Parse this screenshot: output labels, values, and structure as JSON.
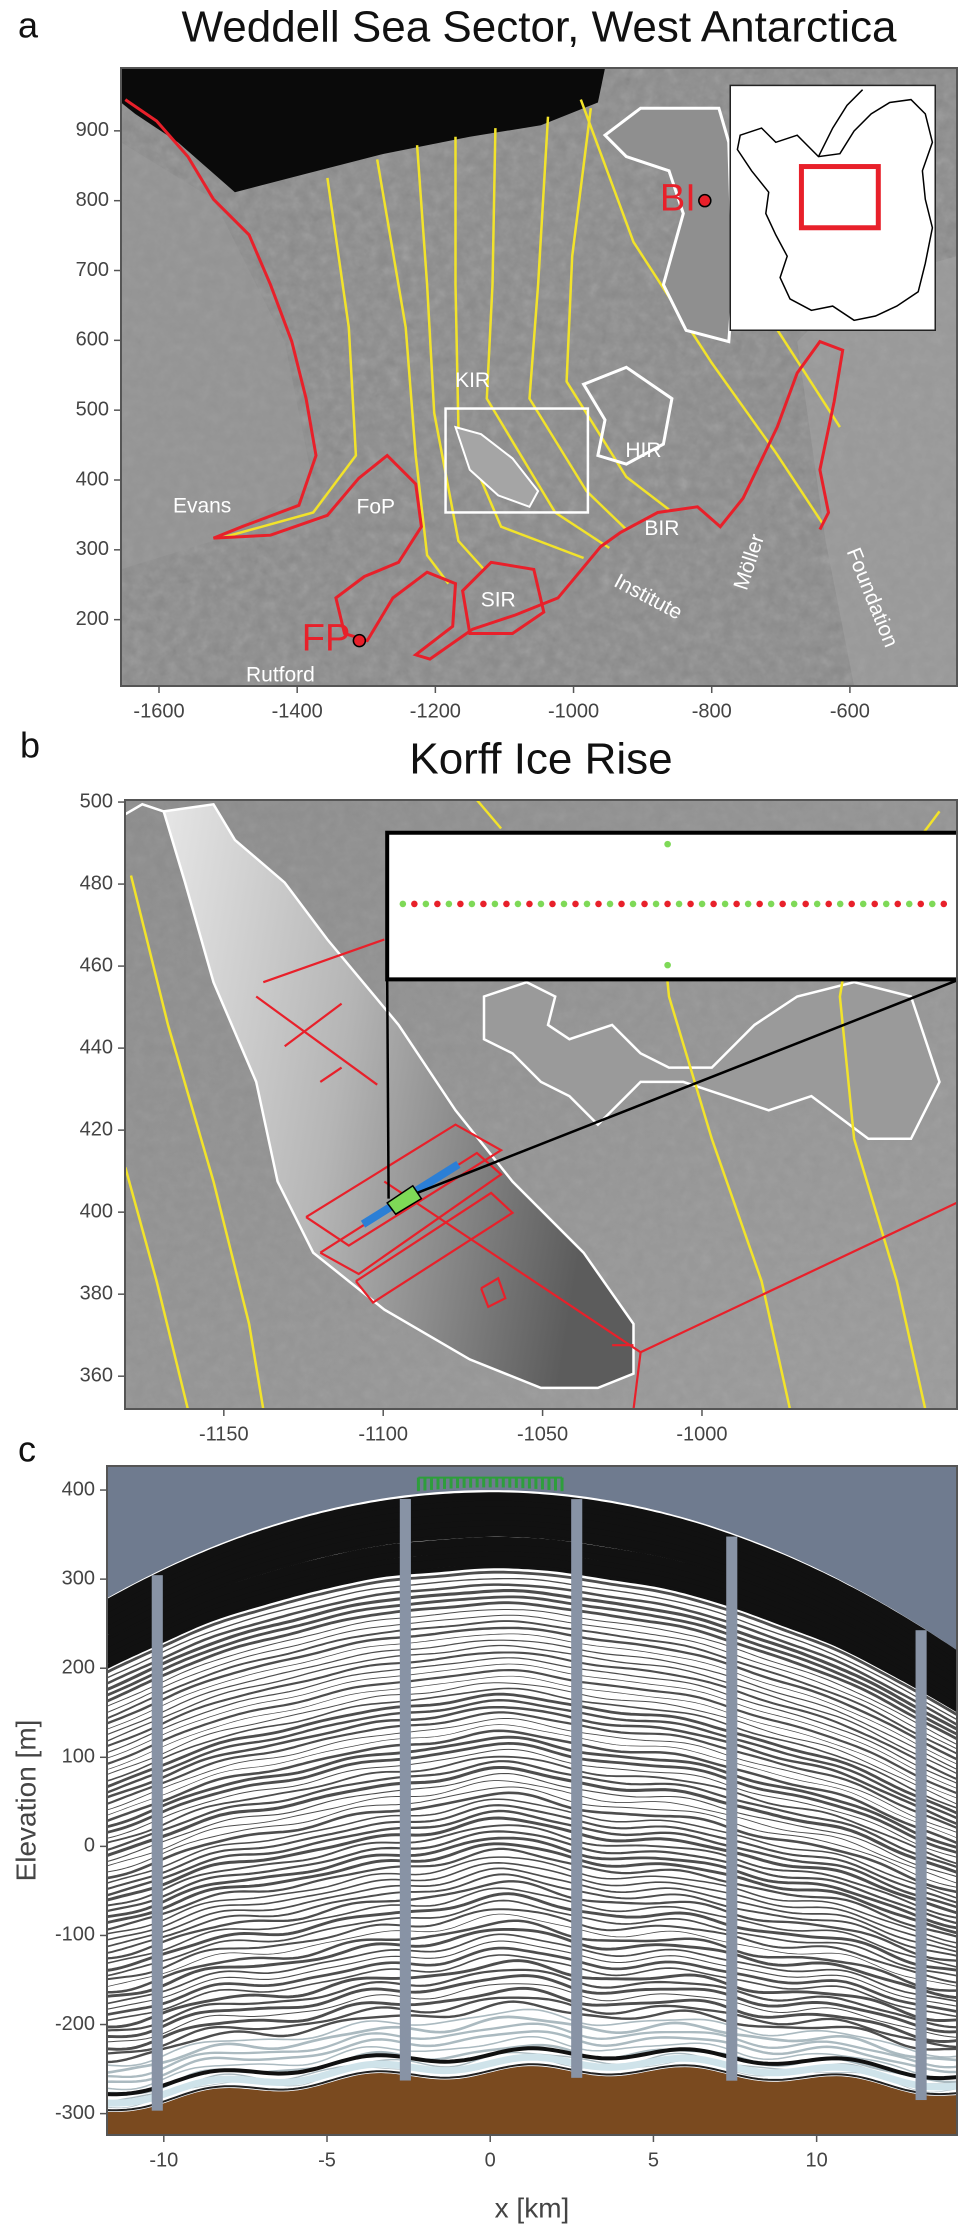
{
  "chart_data": [
    {
      "type": "map",
      "panel": "a",
      "title": "Weddell Sea Sector, West Antarctica",
      "xlim": [
        -1655,
        -445
      ],
      "ylim": [
        105,
        990
      ],
      "xticks": [
        -1600,
        -1400,
        -1200,
        -1000,
        -800,
        -600
      ],
      "yticks": [
        200,
        300,
        400,
        500,
        600,
        700,
        800,
        900
      ],
      "annotations": [
        "Evans",
        "FoP",
        "Rutford",
        "SIR",
        "Institute",
        "BIR",
        "Möller",
        "Foundation",
        "KIR",
        "HIR"
      ],
      "sites": [
        {
          "label": "BI",
          "x": -810,
          "y": 800,
          "color": "#e8202a"
        },
        {
          "label": "FP",
          "x": -1310,
          "y": 170,
          "color": "#e8202a"
        }
      ]
    },
    {
      "type": "map",
      "panel": "b",
      "title": "Korff Ice Rise",
      "xlim": [
        -1181,
        -920
      ],
      "ylim": [
        352,
        500.5
      ],
      "xticks": [
        -1150,
        -1100,
        -1050,
        -1000
      ],
      "yticks": [
        360,
        380,
        400,
        420,
        440,
        460,
        480,
        500
      ]
    },
    {
      "type": "radargram",
      "panel": "c",
      "xlabel": "x [km]",
      "ylabel": "Elevation [m]",
      "xlim": [
        -11.74,
        14.3
      ],
      "ylim": [
        -324,
        427
      ],
      "xticks": [
        -10,
        -5,
        0,
        5,
        10
      ],
      "yticks": [
        -300,
        -200,
        -100,
        0,
        100,
        200,
        300,
        400
      ]
    }
  ]
}
